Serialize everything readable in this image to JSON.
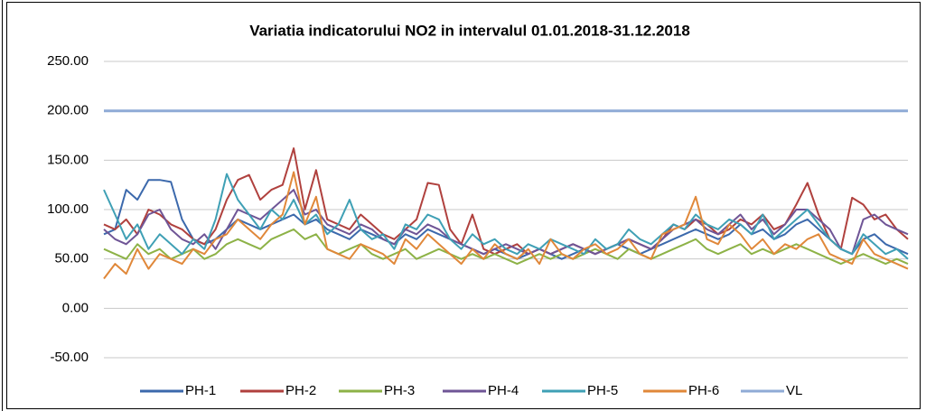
{
  "chart_data": {
    "type": "line",
    "title": "Variatia indicatorului NO2 in intervalul 01.01.2018-31.12.2018",
    "ylim": [
      -50,
      250
    ],
    "yticks": [
      {
        "value": -50,
        "label": "-50.00"
      },
      {
        "value": 0,
        "label": "0.00"
      },
      {
        "value": 50,
        "label": "50.00"
      },
      {
        "value": 100,
        "label": "100.00"
      },
      {
        "value": 150,
        "label": "150.00"
      },
      {
        "value": 200,
        "label": "200.00"
      },
      {
        "value": 250,
        "label": "250.00"
      }
    ],
    "grid": true,
    "legend": "bottom",
    "series": [
      {
        "name": "PH-1",
        "color": "#3c69ac",
        "values": [
          75,
          80,
          120,
          110,
          130,
          130,
          128,
          90,
          70,
          65,
          70,
          80,
          90,
          85,
          80,
          85,
          90,
          95,
          85,
          90,
          80,
          75,
          70,
          80,
          75,
          70,
          65,
          75,
          70,
          80,
          75,
          70,
          65,
          60,
          55,
          60,
          55,
          50,
          55,
          60,
          55,
          50,
          55,
          60,
          55,
          60,
          65,
          60,
          55,
          60,
          65,
          70,
          75,
          80,
          75,
          70,
          75,
          85,
          75,
          80,
          70,
          75,
          85,
          90,
          80,
          70,
          60,
          55,
          70,
          75,
          65,
          60,
          55
        ]
      },
      {
        "name": "PH-2",
        "color": "#b0413e",
        "values": [
          85,
          80,
          90,
          75,
          100,
          95,
          85,
          80,
          70,
          65,
          80,
          110,
          130,
          135,
          110,
          120,
          125,
          162,
          100,
          140,
          90,
          85,
          80,
          95,
          85,
          75,
          70,
          80,
          90,
          127,
          125,
          80,
          65,
          95,
          60,
          55,
          60,
          65,
          55,
          60,
          55,
          60,
          65,
          60,
          55,
          60,
          65,
          70,
          65,
          60,
          70,
          85,
          80,
          90,
          85,
          75,
          80,
          90,
          85,
          95,
          80,
          85,
          105,
          127,
          95,
          70,
          60,
          112,
          105,
          90,
          95,
          80,
          70
        ]
      },
      {
        "name": "PH-3",
        "color": "#8db247",
        "values": [
          60,
          55,
          50,
          65,
          55,
          60,
          50,
          55,
          60,
          50,
          55,
          65,
          70,
          65,
          60,
          70,
          75,
          80,
          70,
          75,
          60,
          55,
          60,
          65,
          55,
          50,
          55,
          60,
          50,
          55,
          60,
          55,
          50,
          55,
          50,
          55,
          50,
          45,
          50,
          55,
          50,
          55,
          50,
          55,
          60,
          55,
          50,
          60,
          55,
          50,
          55,
          60,
          65,
          70,
          60,
          55,
          60,
          65,
          55,
          60,
          55,
          60,
          65,
          60,
          55,
          50,
          45,
          50,
          55,
          50,
          45,
          50,
          45
        ]
      },
      {
        "name": "PH-4",
        "color": "#6f5596",
        "values": [
          80,
          70,
          65,
          75,
          95,
          100,
          80,
          70,
          65,
          75,
          60,
          80,
          100,
          95,
          90,
          100,
          110,
          120,
          95,
          100,
          85,
          80,
          75,
          85,
          80,
          70,
          65,
          80,
          75,
          85,
          80,
          70,
          65,
          60,
          55,
          60,
          65,
          60,
          55,
          60,
          55,
          60,
          65,
          60,
          55,
          60,
          65,
          70,
          65,
          60,
          70,
          80,
          85,
          90,
          80,
          75,
          85,
          95,
          80,
          90,
          75,
          85,
          100,
          100,
          90,
          80,
          60,
          55,
          90,
          95,
          85,
          80,
          75
        ]
      },
      {
        "name": "PH-5",
        "color": "#3fa0b5",
        "values": [
          120,
          95,
          70,
          85,
          60,
          75,
          65,
          55,
          70,
          60,
          90,
          136,
          110,
          95,
          80,
          100,
          90,
          110,
          85,
          95,
          75,
          85,
          110,
          80,
          70,
          75,
          60,
          85,
          80,
          95,
          90,
          70,
          60,
          75,
          65,
          70,
          60,
          55,
          65,
          60,
          70,
          65,
          60,
          55,
          70,
          60,
          65,
          80,
          70,
          65,
          75,
          85,
          80,
          95,
          85,
          80,
          90,
          85,
          75,
          95,
          70,
          80,
          90,
          100,
          85,
          70,
          60,
          55,
          75,
          65,
          55,
          60,
          50
        ]
      },
      {
        "name": "PH-6",
        "color": "#e0883a",
        "values": [
          30,
          45,
          35,
          60,
          40,
          55,
          50,
          45,
          60,
          55,
          70,
          75,
          90,
          80,
          70,
          85,
          95,
          138,
          85,
          113,
          60,
          55,
          50,
          65,
          60,
          55,
          45,
          70,
          60,
          75,
          65,
          55,
          45,
          60,
          50,
          65,
          55,
          50,
          60,
          45,
          70,
          55,
          50,
          60,
          65,
          55,
          60,
          70,
          55,
          50,
          75,
          80,
          85,
          113,
          70,
          65,
          85,
          75,
          60,
          70,
          55,
          65,
          60,
          70,
          75,
          55,
          50,
          45,
          70,
          55,
          50,
          45,
          40
        ]
      },
      {
        "name": "VL",
        "color": "#8fabd6",
        "values": [
          200,
          200,
          200,
          200,
          200,
          200,
          200,
          200,
          200,
          200,
          200,
          200,
          200,
          200,
          200,
          200,
          200,
          200,
          200,
          200,
          200,
          200,
          200,
          200,
          200,
          200,
          200,
          200,
          200,
          200,
          200,
          200,
          200,
          200,
          200,
          200,
          200,
          200,
          200,
          200,
          200,
          200,
          200,
          200,
          200,
          200,
          200,
          200,
          200,
          200,
          200,
          200,
          200,
          200,
          200,
          200,
          200,
          200,
          200,
          200,
          200,
          200,
          200,
          200,
          200,
          200,
          200,
          200,
          200,
          200,
          200,
          200,
          200
        ]
      }
    ]
  }
}
